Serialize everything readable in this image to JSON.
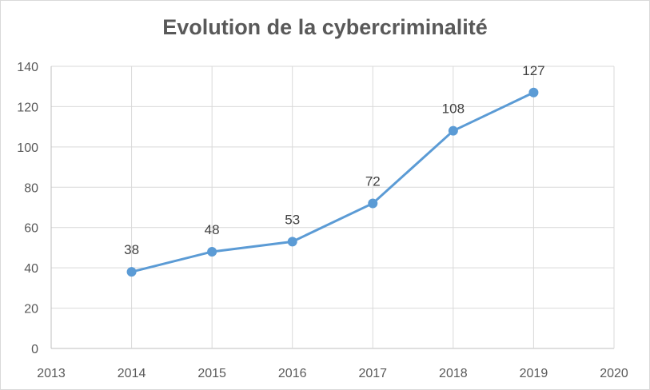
{
  "chart_data": {
    "type": "line",
    "title": "Evolution de la cybercriminalité",
    "xlabel": "",
    "ylabel": "",
    "xlim": [
      2013,
      2020
    ],
    "ylim": [
      0,
      140
    ],
    "x_ticks": [
      2013,
      2014,
      2015,
      2016,
      2017,
      2018,
      2019,
      2020
    ],
    "y_ticks": [
      0,
      20,
      40,
      60,
      80,
      100,
      120,
      140
    ],
    "grid": true,
    "legend": "none",
    "series": [
      {
        "x": [
          2014,
          2015,
          2016,
          2017,
          2018,
          2019
        ],
        "y": [
          38,
          48,
          53,
          72,
          108,
          127
        ],
        "data_labels": [
          "38",
          "48",
          "53",
          "72",
          "108",
          "127"
        ],
        "color": "#5b9bd5"
      }
    ],
    "colors": {
      "grid": "#d9d9d9",
      "axis": "#bfbfbf",
      "text": "#595959",
      "label": "#404040"
    }
  }
}
